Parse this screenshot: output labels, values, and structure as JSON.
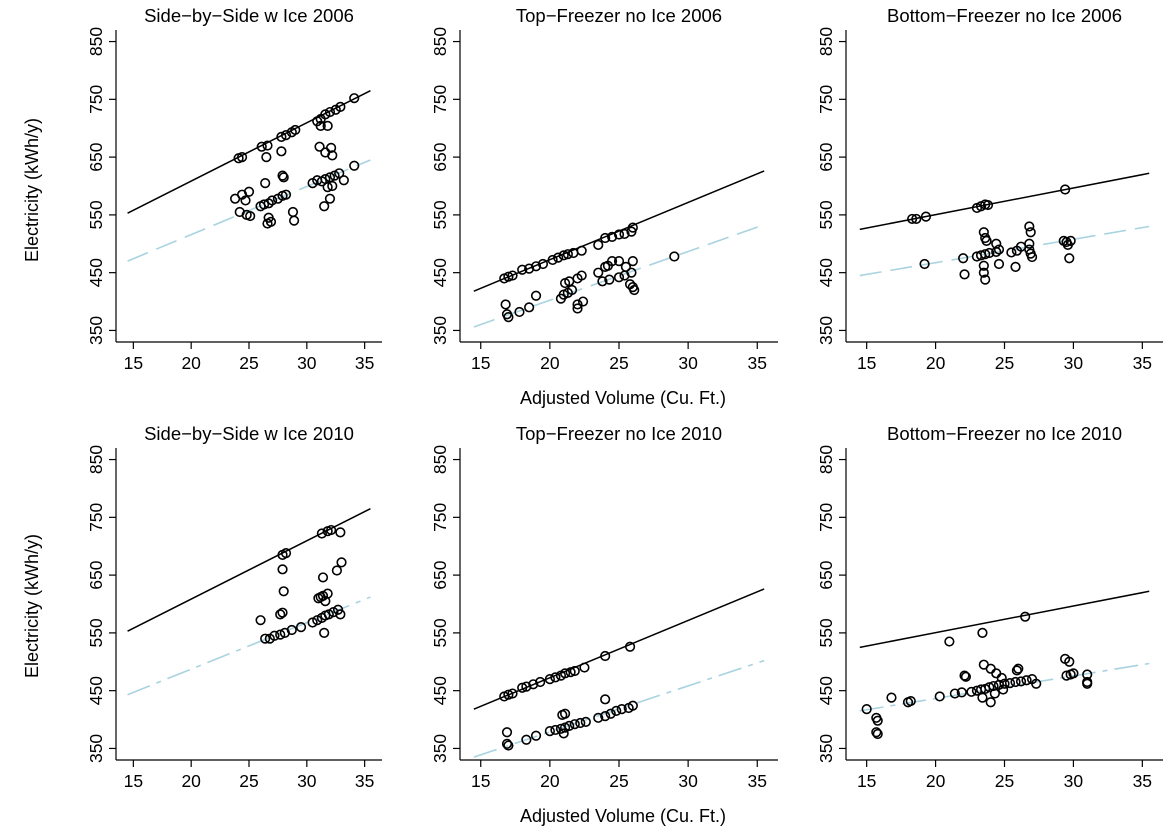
{
  "figure": {
    "shared_ylabel": "Electricity (kWh/y)",
    "shared_xlabel": "Adjusted Volume (Cu. Ft.)"
  },
  "colors": {
    "standard_line": "#000000",
    "fit_line": "#a9d3e0",
    "marker": "#000000"
  },
  "chart_data": [
    {
      "type": "scatter",
      "title": "Side−by−Side w Ice 2006",
      "xlim": [
        13.5,
        36.5
      ],
      "ylim": [
        330,
        870
      ],
      "xticks": [
        "15",
        "20",
        "25",
        "30",
        "35"
      ],
      "yticks": [
        "350",
        "450",
        "550",
        "650",
        "750",
        "850"
      ],
      "standard_line": {
        "x": [
          14.5,
          35.5
        ],
        "y": [
          553,
          765
        ],
        "style": "solid"
      },
      "fit_line": {
        "x": [
          14.5,
          35.5
        ],
        "y": [
          470,
          645
        ],
        "style": "long-dash"
      },
      "points": [
        [
          24.1,
          648
        ],
        [
          24.4,
          650
        ],
        [
          26.1,
          668
        ],
        [
          26.6,
          670
        ],
        [
          27.8,
          685
        ],
        [
          28.2,
          688
        ],
        [
          28.7,
          693
        ],
        [
          29.0,
          697
        ],
        [
          30.9,
          712
        ],
        [
          31.2,
          716
        ],
        [
          31.6,
          724
        ],
        [
          32.0,
          728
        ],
        [
          32.5,
          732
        ],
        [
          32.9,
          737
        ],
        [
          34.1,
          752
        ],
        [
          31.2,
          704
        ],
        [
          31.8,
          704
        ],
        [
          31.1,
          668
        ],
        [
          31.6,
          658
        ],
        [
          32.1,
          666
        ],
        [
          32.2,
          653
        ],
        [
          26.5,
          650
        ],
        [
          27.8,
          660
        ],
        [
          27.9,
          618
        ],
        [
          28.0,
          615
        ],
        [
          23.8,
          578
        ],
        [
          24.4,
          585
        ],
        [
          25.0,
          590
        ],
        [
          24.2,
          555
        ],
        [
          24.8,
          550
        ],
        [
          25.1,
          548
        ],
        [
          24.7,
          575
        ],
        [
          26.0,
          565
        ],
        [
          26.3,
          568
        ],
        [
          26.7,
          570
        ],
        [
          27.0,
          575
        ],
        [
          27.5,
          578
        ],
        [
          27.9,
          583
        ],
        [
          28.2,
          585
        ],
        [
          26.4,
          605
        ],
        [
          26.7,
          545
        ],
        [
          26.9,
          538
        ],
        [
          26.6,
          535
        ],
        [
          28.8,
          555
        ],
        [
          28.9,
          540
        ],
        [
          30.5,
          605
        ],
        [
          30.9,
          610
        ],
        [
          31.3,
          608
        ],
        [
          31.6,
          612
        ],
        [
          32.0,
          615
        ],
        [
          32.4,
          618
        ],
        [
          32.8,
          622
        ],
        [
          31.5,
          565
        ],
        [
          32.0,
          578
        ],
        [
          31.8,
          598
        ],
        [
          32.2,
          600
        ],
        [
          33.2,
          610
        ],
        [
          34.1,
          635
        ]
      ]
    },
    {
      "type": "scatter",
      "title": "Top−Freezer no Ice 2006",
      "xlim": [
        13.5,
        36.5
      ],
      "ylim": [
        330,
        870
      ],
      "xticks": [
        "15",
        "20",
        "25",
        "30",
        "35"
      ],
      "yticks": [
        "350",
        "450",
        "550",
        "650",
        "750",
        "850"
      ],
      "standard_line": {
        "x": [
          14.5,
          35.5
        ],
        "y": [
          418,
          626
        ],
        "style": "solid"
      },
      "fit_line": {
        "x": [
          14.5,
          35.5
        ],
        "y": [
          356,
          533
        ],
        "style": "long-dash"
      },
      "points": [
        [
          16.7,
          440
        ],
        [
          17.0,
          443
        ],
        [
          17.3,
          445
        ],
        [
          18.0,
          455
        ],
        [
          18.5,
          457
        ],
        [
          19.0,
          461
        ],
        [
          19.5,
          465
        ],
        [
          20.2,
          472
        ],
        [
          20.6,
          476
        ],
        [
          21.0,
          480
        ],
        [
          21.3,
          482
        ],
        [
          21.7,
          484
        ],
        [
          22.3,
          488
        ],
        [
          23.5,
          498
        ],
        [
          24.0,
          510
        ],
        [
          24.5,
          512
        ],
        [
          25.0,
          516
        ],
        [
          25.4,
          517
        ],
        [
          25.9,
          521
        ],
        [
          26.0,
          528
        ],
        [
          16.8,
          395
        ],
        [
          16.9,
          378
        ],
        [
          17.0,
          373
        ],
        [
          17.8,
          382
        ],
        [
          18.5,
          390
        ],
        [
          19.0,
          410
        ],
        [
          20.8,
          405
        ],
        [
          21.0,
          412
        ],
        [
          21.3,
          415
        ],
        [
          21.6,
          420
        ],
        [
          21.1,
          432
        ],
        [
          21.4,
          435
        ],
        [
          22.0,
          440
        ],
        [
          22.3,
          445
        ],
        [
          22.0,
          395
        ],
        [
          22.4,
          400
        ],
        [
          22.0,
          388
        ],
        [
          23.5,
          450
        ],
        [
          24.0,
          460
        ],
        [
          24.2,
          462
        ],
        [
          24.5,
          470
        ],
        [
          25.0,
          470
        ],
        [
          25.5,
          460
        ],
        [
          26.0,
          470
        ],
        [
          23.8,
          435
        ],
        [
          24.3,
          438
        ],
        [
          25.0,
          442
        ],
        [
          25.4,
          445
        ],
        [
          25.9,
          450
        ],
        [
          25.8,
          430
        ],
        [
          26.0,
          425
        ],
        [
          26.1,
          420
        ],
        [
          29.0,
          478
        ]
      ]
    },
    {
      "type": "scatter",
      "title": "Bottom−Freezer no Ice 2006",
      "xlim": [
        13.5,
        36.5
      ],
      "ylim": [
        330,
        870
      ],
      "xticks": [
        "15",
        "20",
        "25",
        "30",
        "35"
      ],
      "yticks": [
        "350",
        "450",
        "550",
        "650",
        "750",
        "850"
      ],
      "standard_line": {
        "x": [
          14.5,
          35.5
        ],
        "y": [
          525,
          622
        ],
        "style": "solid"
      },
      "fit_line": {
        "x": [
          14.5,
          35.5
        ],
        "y": [
          445,
          530
        ],
        "style": "long-dash"
      },
      "points": [
        [
          18.3,
          543
        ],
        [
          18.6,
          543
        ],
        [
          19.3,
          547
        ],
        [
          23.0,
          562
        ],
        [
          23.3,
          565
        ],
        [
          23.6,
          568
        ],
        [
          23.8,
          567
        ],
        [
          29.4,
          594
        ],
        [
          19.2,
          465
        ],
        [
          22.0,
          475
        ],
        [
          22.1,
          447
        ],
        [
          23.0,
          478
        ],
        [
          23.3,
          480
        ],
        [
          23.6,
          482
        ],
        [
          23.9,
          484
        ],
        [
          24.4,
          486
        ],
        [
          23.5,
          520
        ],
        [
          23.6,
          510
        ],
        [
          23.7,
          505
        ],
        [
          24.4,
          500
        ],
        [
          24.6,
          490
        ],
        [
          23.5,
          462
        ],
        [
          23.5,
          450
        ],
        [
          23.6,
          438
        ],
        [
          24.6,
          465
        ],
        [
          25.5,
          485
        ],
        [
          25.9,
          488
        ],
        [
          25.8,
          460
        ],
        [
          26.2,
          495
        ],
        [
          26.8,
          530
        ],
        [
          26.9,
          520
        ],
        [
          26.8,
          500
        ],
        [
          26.8,
          490
        ],
        [
          26.9,
          483
        ],
        [
          27.0,
          477
        ],
        [
          29.3,
          505
        ],
        [
          29.5,
          503
        ],
        [
          29.8,
          505
        ],
        [
          29.6,
          498
        ],
        [
          29.7,
          475
        ]
      ]
    },
    {
      "type": "scatter",
      "title": "Side−by−Side w Ice 2010",
      "xlim": [
        13.5,
        36.5
      ],
      "ylim": [
        330,
        870
      ],
      "xticks": [
        "15",
        "20",
        "25",
        "30",
        "35"
      ],
      "yticks": [
        "350",
        "450",
        "550",
        "650",
        "750",
        "850"
      ],
      "standard_line": {
        "x": [
          14.5,
          35.5
        ],
        "y": [
          553,
          765
        ],
        "style": "solid"
      },
      "fit_line": {
        "x": [
          14.5,
          35.5
        ],
        "y": [
          443,
          612
        ],
        "style": "dash-dot"
      },
      "points": [
        [
          27.9,
          685
        ],
        [
          28.2,
          688
        ],
        [
          31.3,
          722
        ],
        [
          31.8,
          726
        ],
        [
          32.1,
          728
        ],
        [
          32.9,
          724
        ],
        [
          26.0,
          572
        ],
        [
          26.4,
          540
        ],
        [
          26.8,
          540
        ],
        [
          27.2,
          545
        ],
        [
          27.7,
          547
        ],
        [
          28.1,
          550
        ],
        [
          28.7,
          555
        ],
        [
          29.5,
          560
        ],
        [
          30.5,
          568
        ],
        [
          30.9,
          572
        ],
        [
          31.3,
          576
        ],
        [
          31.6,
          580
        ],
        [
          31.9,
          582
        ],
        [
          32.3,
          586
        ],
        [
          32.7,
          590
        ],
        [
          32.9,
          582
        ],
        [
          27.7,
          582
        ],
        [
          27.9,
          585
        ],
        [
          27.9,
          660
        ],
        [
          28.0,
          622
        ],
        [
          31.0,
          610
        ],
        [
          31.2,
          612
        ],
        [
          31.4,
          614
        ],
        [
          31.6,
          605
        ],
        [
          31.8,
          618
        ],
        [
          31.4,
          646
        ],
        [
          31.5,
          550
        ],
        [
          32.6,
          658
        ],
        [
          33.0,
          672
        ]
      ]
    },
    {
      "type": "scatter",
      "title": "Top−Freezer no Ice 2010",
      "xlim": [
        13.5,
        36.5
      ],
      "ylim": [
        330,
        870
      ],
      "xticks": [
        "15",
        "20",
        "25",
        "30",
        "35"
      ],
      "yticks": [
        "350",
        "450",
        "550",
        "650",
        "750",
        "850"
      ],
      "standard_line": {
        "x": [
          14.5,
          35.5
        ],
        "y": [
          418,
          626
        ],
        "style": "solid"
      },
      "fit_line": {
        "x": [
          14.5,
          35.5
        ],
        "y": [
          335,
          502
        ],
        "style": "dash-dot"
      },
      "points": [
        [
          16.7,
          440
        ],
        [
          17.0,
          443
        ],
        [
          17.3,
          445
        ],
        [
          18.0,
          455
        ],
        [
          18.3,
          457
        ],
        [
          18.8,
          461
        ],
        [
          19.3,
          465
        ],
        [
          20.0,
          470
        ],
        [
          20.4,
          473
        ],
        [
          20.8,
          476
        ],
        [
          21.1,
          480
        ],
        [
          21.5,
          482
        ],
        [
          21.8,
          484
        ],
        [
          22.5,
          490
        ],
        [
          24.0,
          510
        ],
        [
          25.8,
          526
        ],
        [
          16.9,
          378
        ],
        [
          16.9,
          358
        ],
        [
          17.0,
          355
        ],
        [
          18.3,
          365
        ],
        [
          19.0,
          372
        ],
        [
          20.0,
          380
        ],
        [
          20.4,
          382
        ],
        [
          20.8,
          384
        ],
        [
          21.1,
          386
        ],
        [
          21.4,
          389
        ],
        [
          21.8,
          392
        ],
        [
          22.2,
          394
        ],
        [
          22.6,
          396
        ],
        [
          23.5,
          403
        ],
        [
          24.0,
          406
        ],
        [
          24.4,
          410
        ],
        [
          24.8,
          415
        ],
        [
          25.2,
          418
        ],
        [
          25.7,
          420
        ],
        [
          26.0,
          424
        ],
        [
          20.9,
          408
        ],
        [
          21.1,
          410
        ],
        [
          24.0,
          435
        ],
        [
          21.0,
          376
        ]
      ]
    },
    {
      "type": "scatter",
      "title": "Bottom−Freezer no Ice 2010",
      "xlim": [
        13.5,
        36.5
      ],
      "ylim": [
        330,
        870
      ],
      "xticks": [
        "15",
        "20",
        "25",
        "30",
        "35"
      ],
      "yticks": [
        "350",
        "450",
        "550",
        "650",
        "750",
        "850"
      ],
      "standard_line": {
        "x": [
          14.5,
          35.5
        ],
        "y": [
          525,
          622
        ],
        "style": "solid"
      },
      "fit_line": {
        "x": [
          14.5,
          35.5
        ],
        "y": [
          415,
          497
        ],
        "style": "dash-dot"
      },
      "points": [
        [
          15.0,
          418
        ],
        [
          15.7,
          403
        ],
        [
          15.8,
          398
        ],
        [
          15.7,
          378
        ],
        [
          15.8,
          375
        ],
        [
          16.8,
          438
        ],
        [
          18.0,
          430
        ],
        [
          18.2,
          432
        ],
        [
          20.3,
          440
        ],
        [
          21.0,
          535
        ],
        [
          21.4,
          445
        ],
        [
          21.9,
          447
        ],
        [
          22.1,
          476
        ],
        [
          22.2,
          474
        ],
        [
          22.6,
          448
        ],
        [
          23.0,
          450
        ],
        [
          23.3,
          452
        ],
        [
          23.6,
          453
        ],
        [
          23.9,
          456
        ],
        [
          24.2,
          458
        ],
        [
          24.6,
          460
        ],
        [
          25.0,
          462
        ],
        [
          25.4,
          463
        ],
        [
          25.8,
          465
        ],
        [
          26.2,
          466
        ],
        [
          26.6,
          468
        ],
        [
          27.0,
          470
        ],
        [
          27.3,
          462
        ],
        [
          23.4,
          550
        ],
        [
          23.5,
          495
        ],
        [
          24.0,
          488
        ],
        [
          24.4,
          480
        ],
        [
          24.8,
          472
        ],
        [
          25.9,
          485
        ],
        [
          26.0,
          488
        ],
        [
          23.4,
          438
        ],
        [
          24.0,
          430
        ],
        [
          24.3,
          445
        ],
        [
          24.9,
          452
        ],
        [
          26.5,
          578
        ],
        [
          29.4,
          505
        ],
        [
          29.7,
          500
        ],
        [
          29.5,
          476
        ],
        [
          29.8,
          478
        ],
        [
          30.0,
          480
        ],
        [
          31.0,
          478
        ],
        [
          31.0,
          465
        ],
        [
          31.0,
          462
        ]
      ]
    }
  ]
}
